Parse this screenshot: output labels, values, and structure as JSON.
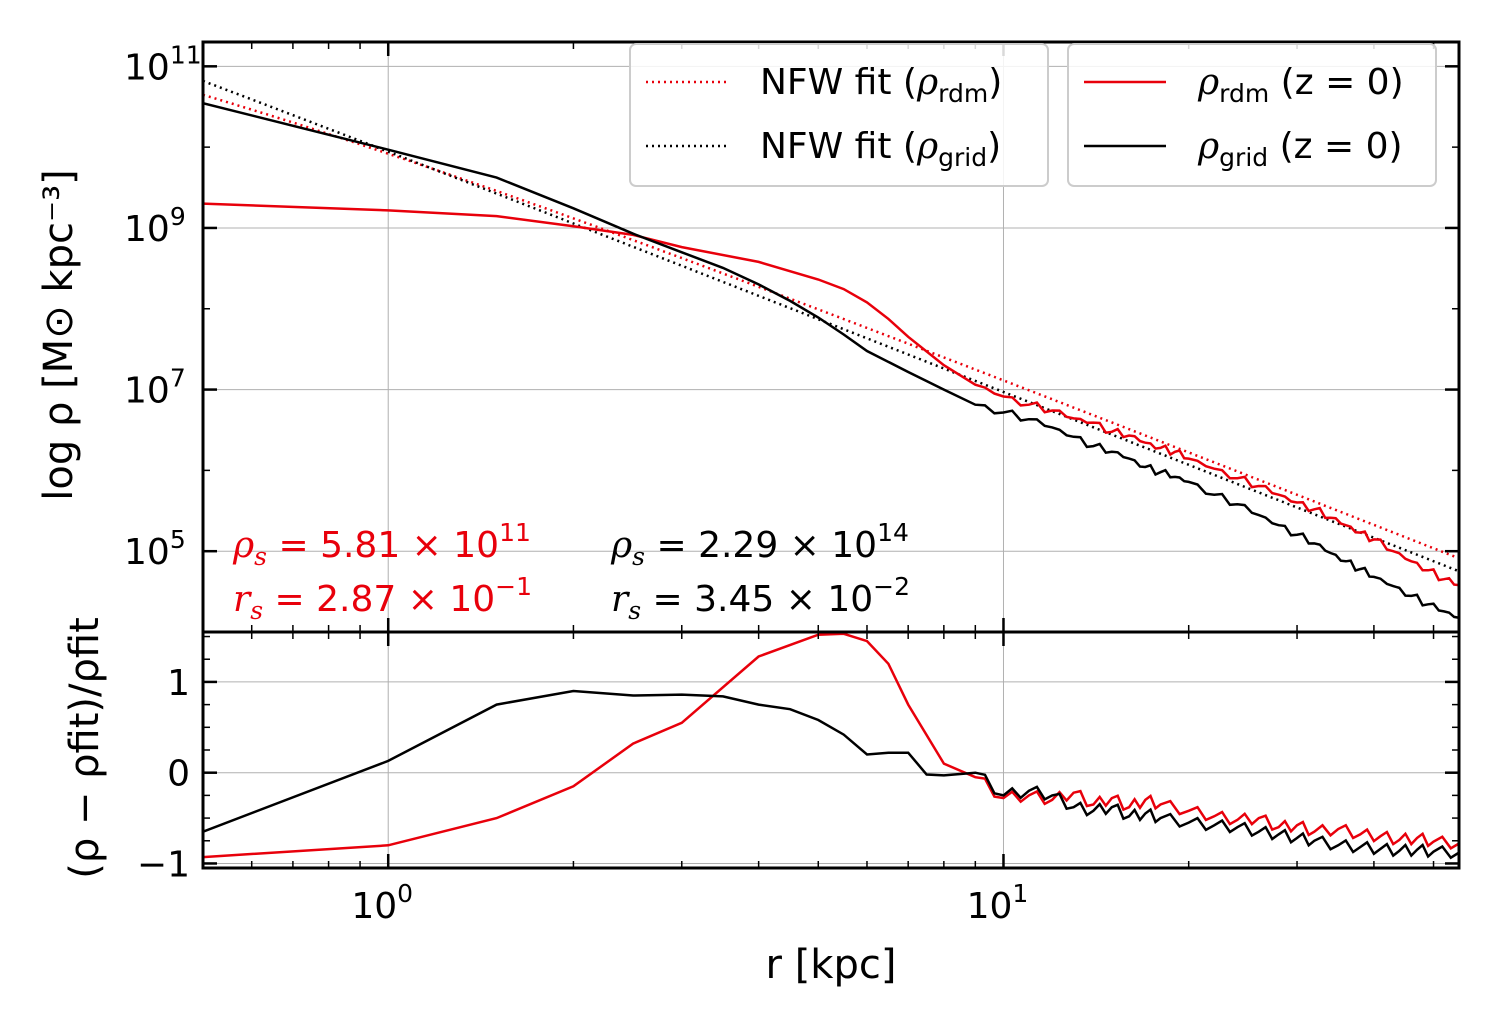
{
  "chart_data": [
    {
      "type": "line",
      "panel": "top",
      "xlabel": "r [kpc]",
      "ylabel": "log ρ [M⊙ kpc⁻³]",
      "xscale": "log",
      "yscale": "log",
      "xlim": [
        0.5,
        55
      ],
      "ylim": [
        10000.0,
        200000000000.0
      ],
      "x_ticks": [
        {
          "value": 1,
          "base": "10",
          "exp": "0"
        },
        {
          "value": 10,
          "base": "10",
          "exp": "1"
        }
      ],
      "y_ticks": [
        {
          "value": 100000.0,
          "base": "10",
          "exp": "5"
        },
        {
          "value": 10000000.0,
          "base": "10",
          "exp": "7"
        },
        {
          "value": 1000000000.0,
          "base": "10",
          "exp": "9"
        },
        {
          "value": 100000000000.0,
          "base": "10",
          "exp": "11"
        }
      ],
      "grid": true,
      "legend_placement": "top-right",
      "legends": [
        {
          "entries": [
            {
              "key": "nfw_rdm",
              "base": "NFW fit (ρ",
              "sub": "rdm",
              "tail": ")"
            },
            {
              "key": "nfw_grid",
              "base": "NFW fit (ρ",
              "sub": "grid",
              "tail": ")"
            }
          ]
        },
        {
          "entries": [
            {
              "key": "rho_rdm",
              "base": "ρ",
              "sub": "rdm",
              "tail": " (z = 0)"
            },
            {
              "key": "rho_grid",
              "base": "ρ",
              "sub": "grid",
              "tail": " (z = 0)"
            }
          ]
        }
      ],
      "annotations": {
        "rdm": {
          "color": "#e8000b",
          "rho_s": {
            "sym": "ρ",
            "sub": "s",
            "text": " =  5.81 × 10",
            "exp": "11"
          },
          "r_s": {
            "sym": "r",
            "sub": "s",
            "text": " =  2.87 × 10",
            "exp": "−1"
          }
        },
        "grid": {
          "color": "#000000",
          "rho_s": {
            "sym": "ρ",
            "sub": "s",
            "text": " =  2.29 × 10",
            "exp": "14"
          },
          "r_s": {
            "sym": "r",
            "sub": "s",
            "text": " =  3.45 × 10",
            "exp": "−2"
          }
        }
      },
      "series": [
        {
          "key": "nfw_rdm",
          "color": "#e8000b",
          "style": "dotted",
          "model": "nfw",
          "rho_s": 581000000000.0,
          "r_s": 0.287
        },
        {
          "key": "nfw_grid",
          "color": "#000000",
          "style": "dotted",
          "model": "nfw",
          "rho_s": 229000000000000.0,
          "r_s": 0.0345
        },
        {
          "key": "rho_rdm",
          "color": "#e8000b",
          "style": "solid",
          "points": [
            [
              0.5,
              2000000000.0
            ],
            [
              1.0,
              1650000000.0
            ],
            [
              1.5,
              1400000000.0
            ],
            [
              2.0,
              1050000000.0
            ],
            [
              2.5,
              820000000.0
            ],
            [
              3.0,
              580000000.0
            ],
            [
              4.0,
              380000000.0
            ],
            [
              5.0,
              230000000.0
            ],
            [
              5.5,
              175000000.0
            ],
            [
              6.0,
              120000000.0
            ],
            [
              6.5,
              75000000.0
            ],
            [
              7.0,
              45000000.0
            ],
            [
              8.0,
              20000000.0
            ],
            [
              9.0,
              11500000.0
            ],
            [
              10.0,
              8200000.0
            ],
            [
              11.0,
              6500000.0
            ],
            [
              12.0,
              5500000.0
            ],
            [
              13.0,
              4400000.0
            ],
            [
              14.0,
              3900000.0
            ],
            [
              15.0,
              3000000.0
            ],
            [
              16.0,
              2700000.0
            ],
            [
              17.0,
              2200000.0
            ],
            [
              18.0,
              1900000.0
            ],
            [
              19.0,
              1700000.0
            ],
            [
              20.0,
              1400000.0
            ],
            [
              22.0,
              1050000.0
            ],
            [
              24.0,
              800000.0
            ],
            [
              26.0,
              640000.0
            ],
            [
              28.0,
              500000.0
            ],
            [
              30.0,
              400000.0
            ],
            [
              32.0,
              330000.0
            ],
            [
              34.0,
              260000.0
            ],
            [
              36.0,
              210000.0
            ],
            [
              38.0,
              170000.0
            ],
            [
              40.0,
              140000.0
            ],
            [
              43.0,
              100000.0
            ],
            [
              46.0,
              75000.0
            ],
            [
              49.0,
              58000.0
            ],
            [
              52.0,
              45000.0
            ],
            [
              55.0,
              38000.0
            ]
          ]
        },
        {
          "key": "rho_grid",
          "color": "#000000",
          "style": "solid",
          "points": [
            [
              0.5,
              35000000000.0
            ],
            [
              1.0,
              9300000000.0
            ],
            [
              1.5,
              4200000000.0
            ],
            [
              2.0,
              1750000000.0
            ],
            [
              2.5,
              850000000.0
            ],
            [
              3.0,
              500000000.0
            ],
            [
              3.5,
              320000000.0
            ],
            [
              4.0,
              200000000.0
            ],
            [
              4.5,
              125000000.0
            ],
            [
              5.0,
              78000000.0
            ],
            [
              5.5,
              48000000.0
            ],
            [
              6.0,
              30000000.0
            ],
            [
              7.0,
              16500000.0
            ],
            [
              8.0,
              10000000.0
            ],
            [
              9.0,
              6500000.0
            ],
            [
              10.0,
              5200000.0
            ],
            [
              11.0,
              4300000.0
            ],
            [
              12.0,
              3400000.0
            ],
            [
              13.0,
              2600000.0
            ],
            [
              14.0,
              2000000.0
            ],
            [
              15.0,
              1700000.0
            ],
            [
              16.0,
              1400000.0
            ],
            [
              17.0,
              1100000.0
            ],
            [
              18.0,
              950000.0
            ],
            [
              19.0,
              830000.0
            ],
            [
              20.0,
              720000.0
            ],
            [
              22.0,
              500000.0
            ],
            [
              24.0,
              380000.0
            ],
            [
              26.0,
              280000.0
            ],
            [
              28.0,
              210000.0
            ],
            [
              30.0,
              160000.0
            ],
            [
              32.0,
              125000.0
            ],
            [
              34.0,
              95000.0
            ],
            [
              36.0,
              75000.0
            ],
            [
              38.0,
              60000.0
            ],
            [
              40.0,
              48000.0
            ],
            [
              43.0,
              37000.0
            ],
            [
              46.0,
              28000.0
            ],
            [
              49.0,
              22000.0
            ],
            [
              52.0,
              18000.0
            ],
            [
              55.0,
              15000.0
            ]
          ]
        }
      ]
    },
    {
      "type": "line",
      "panel": "bottom",
      "xlabel": "r [kpc]",
      "ylabel": "(ρ − ρfit)/ρfit",
      "xscale": "log",
      "xlim": [
        0.5,
        55
      ],
      "ylim": [
        -1.05,
        1.55
      ],
      "y_ticks": [
        {
          "value": -1,
          "label": "−1"
        },
        {
          "value": 0,
          "label": "0"
        },
        {
          "value": 1,
          "label": "1"
        }
      ],
      "grid": true,
      "series": [
        {
          "key": "res_rdm",
          "color": "#e8000b",
          "style": "solid",
          "points": [
            [
              0.5,
              -0.93
            ],
            [
              1.0,
              -0.8
            ],
            [
              1.5,
              -0.5
            ],
            [
              2.0,
              -0.15
            ],
            [
              2.5,
              0.32
            ],
            [
              3.0,
              0.55
            ],
            [
              4.0,
              1.28
            ],
            [
              5.0,
              1.52
            ],
            [
              5.5,
              1.53
            ],
            [
              6.0,
              1.45
            ],
            [
              6.5,
              1.2
            ],
            [
              7.0,
              0.75
            ],
            [
              8.0,
              0.1
            ],
            [
              9.0,
              -0.05
            ],
            [
              10.0,
              -0.28
            ],
            [
              11.0,
              -0.25
            ],
            [
              12.0,
              -0.3
            ],
            [
              13.0,
              -0.22
            ],
            [
              14.0,
              -0.35
            ],
            [
              15.0,
              -0.28
            ],
            [
              16.0,
              -0.38
            ],
            [
              17.0,
              -0.3
            ],
            [
              18.0,
              -0.35
            ],
            [
              20.0,
              -0.42
            ],
            [
              22.0,
              -0.48
            ],
            [
              24.0,
              -0.52
            ],
            [
              26.0,
              -0.5
            ],
            [
              28.0,
              -0.6
            ],
            [
              30.0,
              -0.58
            ],
            [
              32.0,
              -0.65
            ],
            [
              35.0,
              -0.62
            ],
            [
              38.0,
              -0.68
            ],
            [
              41.0,
              -0.7
            ],
            [
              44.0,
              -0.74
            ],
            [
              47.0,
              -0.72
            ],
            [
              50.0,
              -0.76
            ],
            [
              55.0,
              -0.78
            ]
          ]
        },
        {
          "key": "res_grid",
          "color": "#000000",
          "style": "solid",
          "points": [
            [
              0.5,
              -0.65
            ],
            [
              1.0,
              0.13
            ],
            [
              1.5,
              0.75
            ],
            [
              2.0,
              0.9
            ],
            [
              2.5,
              0.85
            ],
            [
              3.0,
              0.86
            ],
            [
              3.5,
              0.84
            ],
            [
              4.0,
              0.75
            ],
            [
              4.5,
              0.7
            ],
            [
              5.0,
              0.58
            ],
            [
              5.5,
              0.42
            ],
            [
              6.0,
              0.2
            ],
            [
              6.5,
              0.22
            ],
            [
              7.0,
              0.22
            ],
            [
              7.5,
              -0.02
            ],
            [
              8.0,
              -0.03
            ],
            [
              9.0,
              0.0
            ],
            [
              10.0,
              -0.25
            ],
            [
              11.0,
              -0.2
            ],
            [
              12.0,
              -0.25
            ],
            [
              13.0,
              -0.38
            ],
            [
              14.0,
              -0.42
            ],
            [
              15.0,
              -0.38
            ],
            [
              16.0,
              -0.48
            ],
            [
              17.0,
              -0.45
            ],
            [
              18.0,
              -0.5
            ],
            [
              20.0,
              -0.55
            ],
            [
              22.0,
              -0.58
            ],
            [
              24.0,
              -0.6
            ],
            [
              26.0,
              -0.65
            ],
            [
              28.0,
              -0.68
            ],
            [
              30.0,
              -0.72
            ],
            [
              32.0,
              -0.75
            ],
            [
              35.0,
              -0.8
            ],
            [
              38.0,
              -0.82
            ],
            [
              41.0,
              -0.84
            ],
            [
              44.0,
              -0.86
            ],
            [
              47.0,
              -0.85
            ],
            [
              50.0,
              -0.87
            ],
            [
              55.0,
              -0.88
            ]
          ]
        }
      ]
    }
  ]
}
